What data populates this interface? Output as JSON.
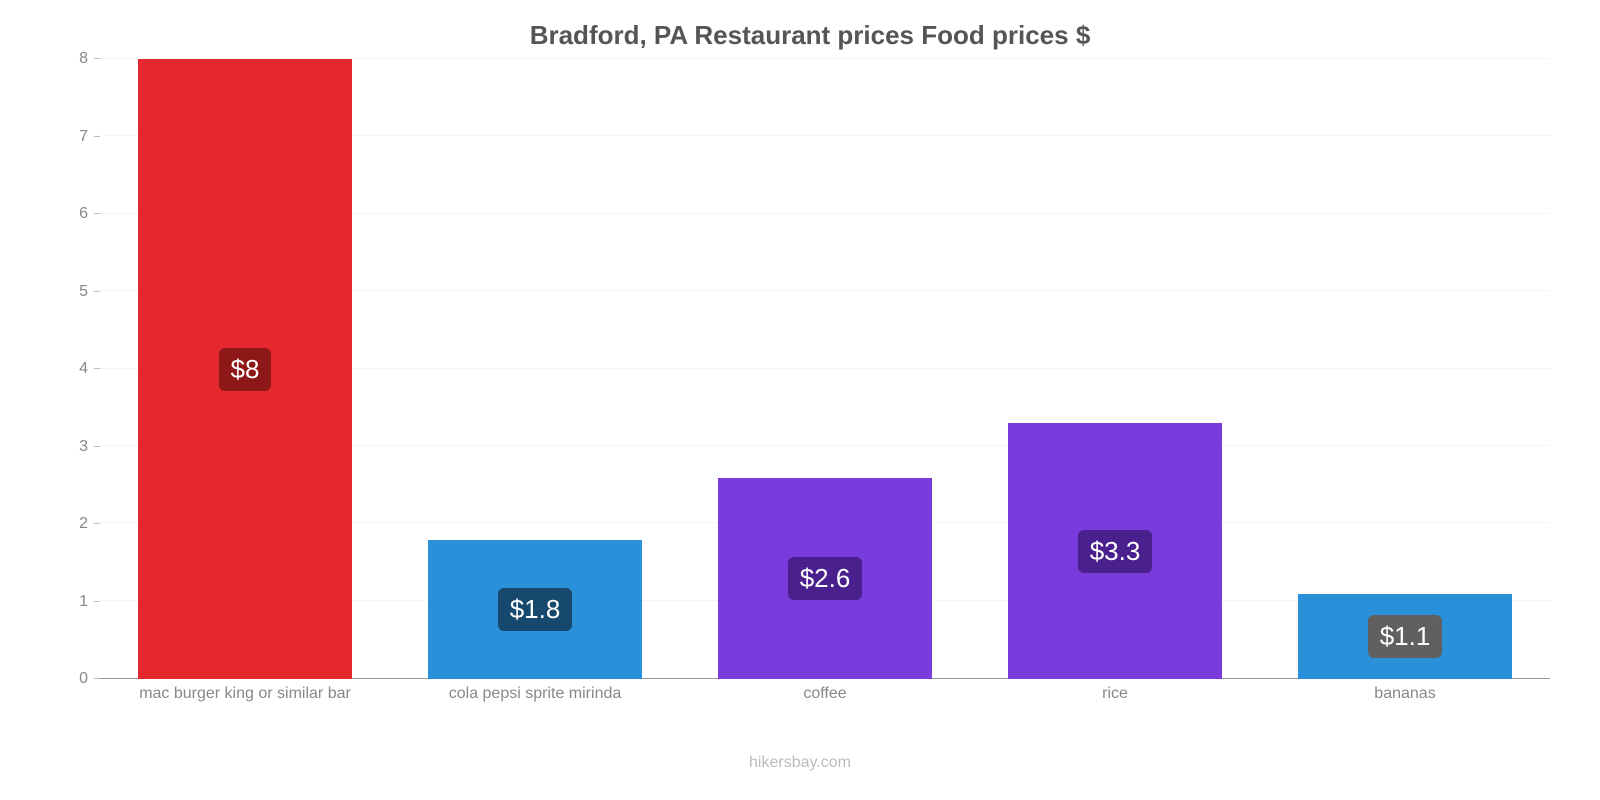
{
  "chart": {
    "type": "bar",
    "title": "Bradford, PA Restaurant prices Food prices $",
    "title_fontsize": 26,
    "title_color": "#555555",
    "attribution": "hikersbay.com",
    "attribution_color": "#bbbbbb",
    "background_color": "#ffffff",
    "grid_color": "#f5f5f5",
    "axis_color": "#999999",
    "axis_label_color": "#888888",
    "axis_label_fontsize": 16,
    "ylim": [
      0,
      8
    ],
    "ytick_step": 1,
    "yticks": [
      0,
      1,
      2,
      3,
      4,
      5,
      6,
      7,
      8
    ],
    "bar_width": 0.74,
    "value_label_fontsize": 26,
    "value_label_color": "#ffffff",
    "categories": [
      "mac burger king or similar bar",
      "cola pepsi sprite mirinda",
      "coffee",
      "rice",
      "bananas"
    ],
    "values": [
      8,
      1.8,
      2.6,
      3.3,
      1.1
    ],
    "value_labels": [
      "$8",
      "$1.8",
      "$2.6",
      "$3.3",
      "$1.1"
    ],
    "bar_colors": [
      "#e5272e",
      "#2a90d9",
      "#7a3bdc",
      "#7a3bdc",
      "#2a90d9"
    ],
    "badge_colors": [
      "#8e1717",
      "#17496e",
      "#4a1f8e",
      "#4a1f8e",
      "#606060"
    ]
  }
}
